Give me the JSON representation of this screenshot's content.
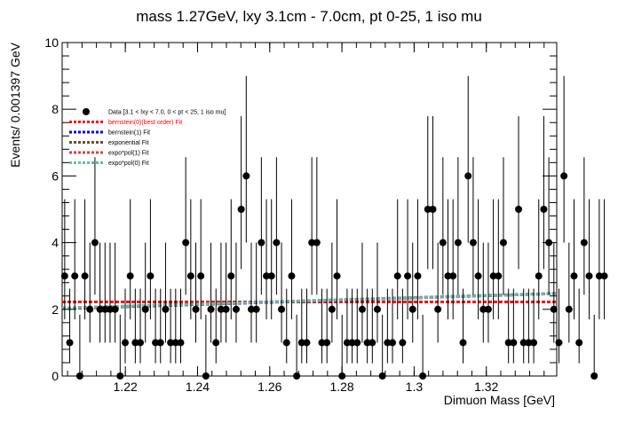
{
  "chart_data": {
    "type": "scatter",
    "title": "mass 1.27GeV, lxy 3.1cm - 7.0cm, pt 0-25, 1 iso mu",
    "xlabel": "Dimuon Mass [GeV]",
    "ylabel": "Events/ 0.001397 GeV",
    "xlim": [
      1.2025,
      1.3395
    ],
    "ylim": [
      0,
      10
    ],
    "x_ticks": [
      {
        "value": 1.22,
        "label": "1.22"
      },
      {
        "value": 1.24,
        "label": "1.24"
      },
      {
        "value": 1.26,
        "label": "1.26"
      },
      {
        "value": 1.28,
        "label": "1.28"
      },
      {
        "value": 1.3,
        "label": "1.3"
      },
      {
        "value": 1.32,
        "label": "1.32"
      }
    ],
    "y_ticks": [
      {
        "value": 0,
        "label": "0"
      },
      {
        "value": 2,
        "label": "2"
      },
      {
        "value": 4,
        "label": "4"
      },
      {
        "value": 6,
        "label": "6"
      },
      {
        "value": 8,
        "label": "8"
      },
      {
        "value": 10,
        "label": "10"
      }
    ],
    "grid": false,
    "legend_position": "top-left",
    "legend": [
      {
        "label": "Data [3.1 < lxy < 7.0, 0 < pt < 25, 1 iso mu]",
        "marker": "circle",
        "color": "#000000",
        "text_color": "#000000"
      },
      {
        "label": "bernstein(0)(best order) Fit",
        "marker": "dashed",
        "color": "#ff0000",
        "text_color": "#ff0000"
      },
      {
        "label": "bernstein(1) Fit",
        "marker": "dashed",
        "color": "#0000ff",
        "text_color": "#000000"
      },
      {
        "label": "exponential Fit",
        "marker": "dashed",
        "color": "#6b4f2a",
        "text_color": "#000000"
      },
      {
        "label": "expo*pol(1) Fit",
        "marker": "dashed",
        "color": "#cc4444",
        "text_color": "#000000"
      },
      {
        "label": "expo*pol(0) Fit",
        "marker": "dashed",
        "color": "#66bbaa",
        "text_color": "#000000"
      }
    ],
    "series": [
      {
        "name": "Data [3.1 < lxy < 7.0, 0 < pt < 25, 1 iso mu]",
        "kind": "points_with_errors",
        "color": "#000000",
        "bin_width": 0.001397,
        "x_start": 1.2032,
        "values": [
          3,
          1,
          3,
          0,
          3,
          2,
          4,
          2,
          2,
          2,
          2,
          0,
          1,
          3,
          1,
          1,
          2,
          3,
          1,
          1,
          2,
          1,
          1,
          1,
          4,
          3,
          2,
          3,
          0,
          2,
          1,
          2,
          2,
          3,
          2,
          5,
          6,
          2,
          2,
          4,
          3,
          3,
          4,
          2,
          1,
          3,
          0,
          1,
          1,
          4,
          4,
          1,
          1,
          2,
          3,
          0,
          1,
          1,
          1,
          2,
          1,
          1,
          2,
          0,
          1,
          1,
          3,
          1,
          3,
          2,
          3,
          0,
          5,
          5,
          2,
          4,
          3,
          3,
          4,
          1,
          6,
          4,
          3,
          2,
          2,
          3,
          3,
          4,
          1,
          1,
          5,
          1,
          1,
          1,
          3,
          5,
          4,
          2,
          1,
          6,
          2,
          3,
          1,
          4,
          3,
          0,
          3,
          3
        ]
      },
      {
        "name": "bernstein(0)(best order) Fit",
        "kind": "line",
        "color": "#ff0000",
        "x": [
          1.2025,
          1.3395
        ],
        "values": [
          2.22,
          2.22
        ]
      },
      {
        "name": "bernstein(1) Fit",
        "kind": "line",
        "color": "#0000ff",
        "x": [
          1.2025,
          1.3395
        ],
        "values": [
          2.02,
          2.47
        ]
      },
      {
        "name": "exponential Fit",
        "kind": "line",
        "color": "#6b4f2a",
        "x": [
          1.2025,
          1.3395
        ],
        "values": [
          2.04,
          2.48
        ]
      },
      {
        "name": "expo*pol(1) Fit",
        "kind": "line",
        "color": "#cc4444",
        "x": [
          1.2025,
          1.3395
        ],
        "values": [
          2.03,
          2.47
        ]
      },
      {
        "name": "expo*pol(0) Fit",
        "kind": "line",
        "color": "#66bbaa",
        "x": [
          1.2025,
          1.3395
        ],
        "values": [
          2.04,
          2.47
        ]
      }
    ]
  }
}
